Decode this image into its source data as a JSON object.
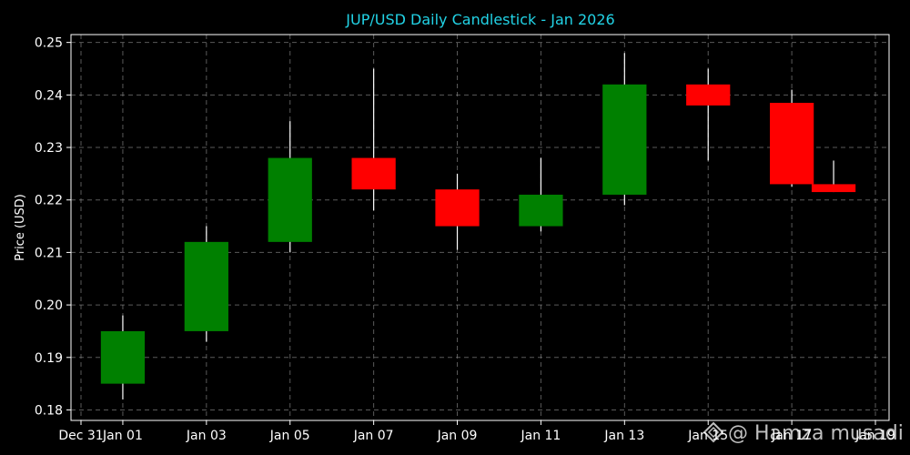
{
  "chart_data": {
    "type": "candlestick",
    "title": "JUP/USD Daily Candlestick - Jan 2026",
    "xlabel": "",
    "ylabel": "Price (USD)",
    "ylim": [
      0.178,
      0.2515
    ],
    "xlim": [
      "2025-12-31",
      "2026-01-19"
    ],
    "grid": true,
    "x_tick_labels": [
      "Dec 31",
      "Jan 01",
      "Jan 03",
      "Jan 05",
      "Jan 07",
      "Jan 09",
      "Jan 11",
      "Jan 13",
      "Jan 15",
      "Jan 17",
      "Jan 19"
    ],
    "x_tick_dates": [
      "2025-12-31",
      "2026-01-01",
      "2026-01-03",
      "2026-01-05",
      "2026-01-07",
      "2026-01-09",
      "2026-01-11",
      "2026-01-13",
      "2026-01-15",
      "2026-01-17",
      "2026-01-19"
    ],
    "y_ticks": [
      0.18,
      0.19,
      0.2,
      0.21,
      0.22,
      0.23,
      0.24,
      0.25
    ],
    "y_tick_labels": [
      "0.18",
      "0.19",
      "0.20",
      "0.21",
      "0.22",
      "0.23",
      "0.24",
      "0.25"
    ],
    "candles": [
      {
        "date": "2026-01-01",
        "open": 0.185,
        "high": 0.198,
        "low": 0.182,
        "close": 0.195
      },
      {
        "date": "2026-01-03",
        "open": 0.195,
        "high": 0.215,
        "low": 0.193,
        "close": 0.212
      },
      {
        "date": "2026-01-05",
        "open": 0.212,
        "high": 0.235,
        "low": 0.21,
        "close": 0.228
      },
      {
        "date": "2026-01-07",
        "open": 0.228,
        "high": 0.245,
        "low": 0.218,
        "close": 0.222
      },
      {
        "date": "2026-01-09",
        "open": 0.222,
        "high": 0.225,
        "low": 0.2105,
        "close": 0.215
      },
      {
        "date": "2026-01-11",
        "open": 0.215,
        "high": 0.228,
        "low": 0.214,
        "close": 0.221
      },
      {
        "date": "2026-01-13",
        "open": 0.221,
        "high": 0.248,
        "low": 0.219,
        "close": 0.242
      },
      {
        "date": "2026-01-15",
        "open": 0.242,
        "high": 0.245,
        "low": 0.2275,
        "close": 0.238
      },
      {
        "date": "2026-01-17",
        "open": 0.2385,
        "high": 0.241,
        "low": 0.2225,
        "close": 0.223
      },
      {
        "date": "2026-01-18",
        "open": 0.223,
        "high": 0.2275,
        "low": 0.2215,
        "close": 0.2215
      }
    ],
    "colors": {
      "up": "#008000",
      "down": "#ff0000",
      "wick": "#ffffff",
      "grid": "#808080",
      "title": "#22d3e6",
      "background": "#000000",
      "axes": "#ffffff"
    }
  },
  "watermark": "@ Hamza musadi",
  "watermark_icon": "shield-icon"
}
